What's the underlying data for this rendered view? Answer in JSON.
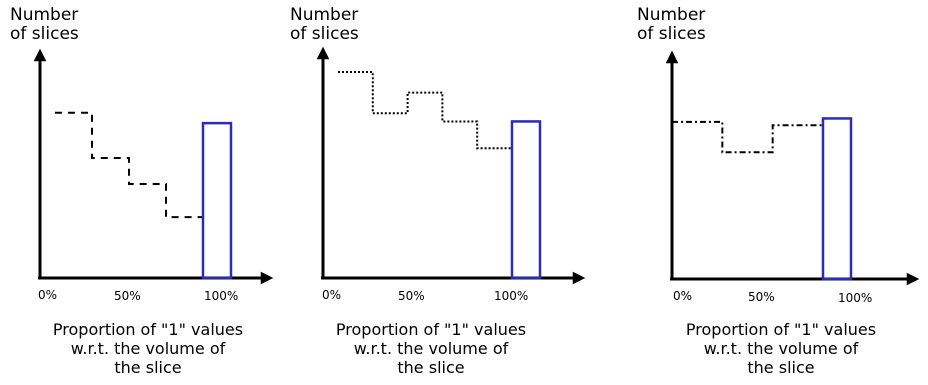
{
  "panels": [
    {
      "y_label": [
        "Number",
        "of slices"
      ],
      "tick_labels": [
        "0%",
        "50%",
        "100%"
      ],
      "caption": [
        "Proportion of \"1\" values",
        "w.r.t. the volume of",
        "the slice"
      ],
      "curve_style": "dashed",
      "steps_y": [
        0.95,
        0.69,
        0.54,
        0.35
      ],
      "bar_height": 0.89
    },
    {
      "y_label": [
        "Number",
        "of slices"
      ],
      "tick_labels": [
        "0%",
        "50%",
        "100%"
      ],
      "caption": [
        "Proportion of \"1\" values",
        "w.r.t. the volume of",
        "the slice"
      ],
      "curve_style": "dotted",
      "steps_y": [
        1.0,
        0.8,
        0.9,
        0.76,
        0.63
      ],
      "bar_height": 0.76
    },
    {
      "y_label": [
        "Number",
        "of slices"
      ],
      "tick_labels": [
        "0%",
        "50%",
        "100%"
      ],
      "caption": [
        "Proportion of \"1\" values",
        "w.r.t. the volume of",
        "the slice"
      ],
      "curve_style": "dash-dot",
      "steps_y": [
        0.93,
        0.75,
        0.91
      ],
      "bar_height": 0.95
    }
  ],
  "colors": {
    "axis": "#000000",
    "bar": "#2b2bb8",
    "curve": "#000000"
  }
}
